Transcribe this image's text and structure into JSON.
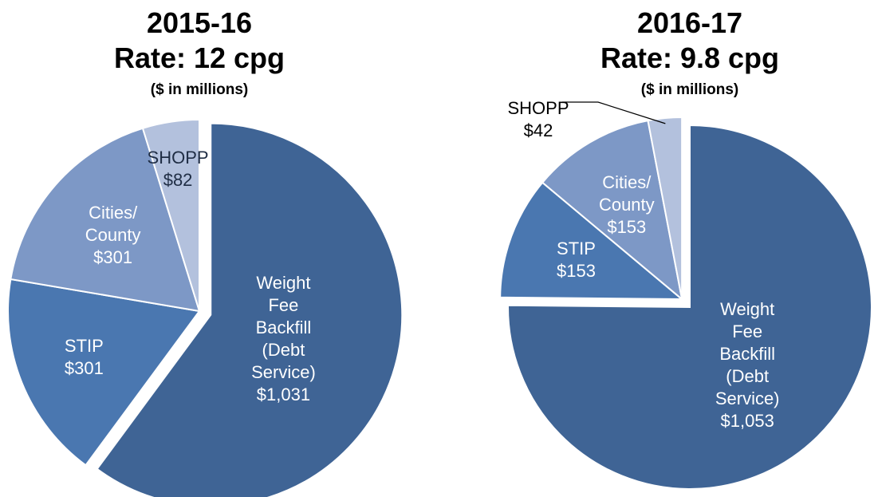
{
  "chart_data": [
    {
      "type": "pie",
      "title": "2015-16",
      "subtitle": "Rate: 12 cpg",
      "note": "($ in millions)",
      "categories": [
        "Weight Fee Backfill (Debt Service)",
        "STIP",
        "Cities/ County",
        "SHOPP"
      ],
      "values": [
        1031,
        301,
        301,
        82
      ],
      "value_labels": [
        "$1,031",
        "$301",
        "$301",
        "$82"
      ],
      "colors": [
        "#3f6495",
        "#4a77b0",
        "#7d98c6",
        "#b3c1dd"
      ]
    },
    {
      "type": "pie",
      "title": "2016-17",
      "subtitle": "Rate: 9.8 cpg",
      "note": "($ in millions)",
      "categories": [
        "Weight Fee Backfill (Debt Service)",
        "STIP",
        "Cities/ County",
        "SHOPP"
      ],
      "values": [
        1053,
        153,
        153,
        42
      ],
      "value_labels": [
        "$1,053",
        "$153",
        "$153",
        "$42"
      ],
      "colors": [
        "#3f6495",
        "#4a77b0",
        "#7d98c6",
        "#b3c1dd"
      ]
    }
  ]
}
